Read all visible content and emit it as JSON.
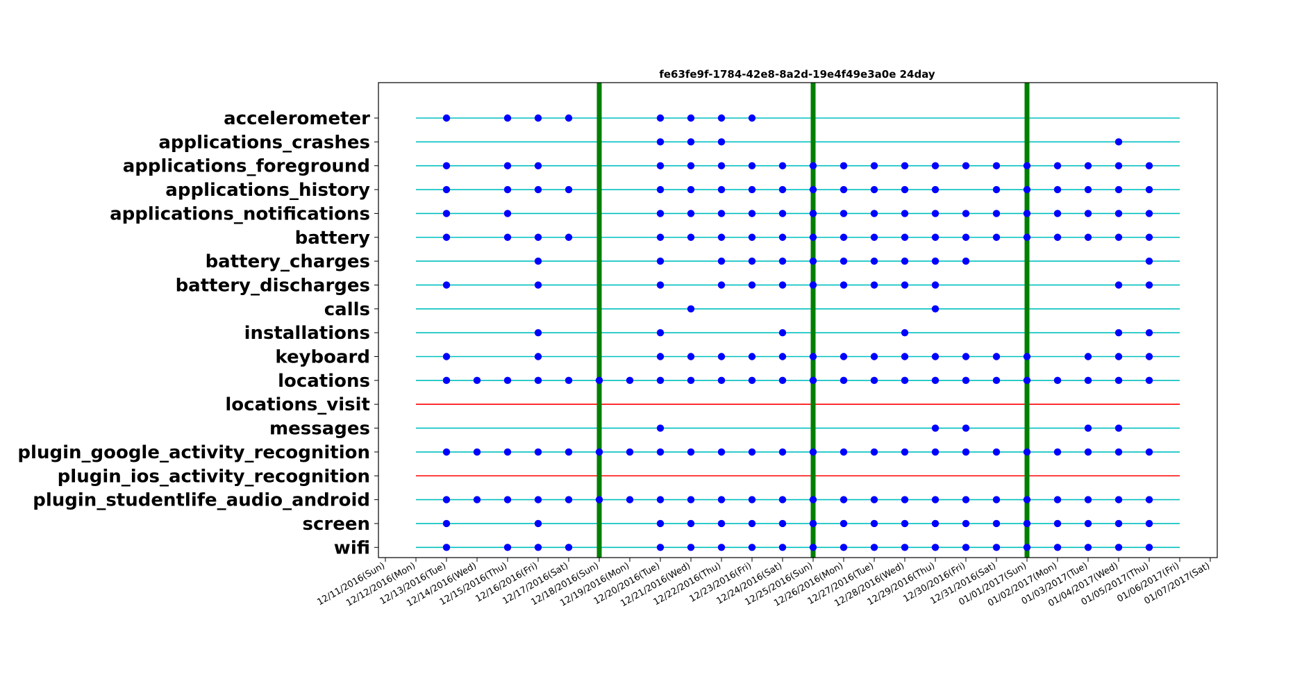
{
  "chart_data": {
    "type": "scatter",
    "title": "fe63fe9f-1784-42e8-8a2d-19e4f49e3a0e 24day",
    "xlabel": "",
    "ylabel": "",
    "x_tick_labels": [
      "12/11/2016(Sun)",
      "12/12/2016(Mon)",
      "12/13/2016(Tue)",
      "12/14/2016(Wed)",
      "12/15/2016(Thu)",
      "12/16/2016(Fri)",
      "12/17/2016(Sat)",
      "12/18/2016(Sun)",
      "12/19/2016(Mon)",
      "12/20/2016(Tue)",
      "12/21/2016(Wed)",
      "12/22/2016(Thu)",
      "12/23/2016(Fri)",
      "12/24/2016(Sat)",
      "12/25/2016(Sun)",
      "12/26/2016(Mon)",
      "12/27/2016(Tue)",
      "12/28/2016(Wed)",
      "12/29/2016(Thu)",
      "12/30/2016(Fri)",
      "12/31/2016(Sat)",
      "01/01/2017(Sun)",
      "01/02/2017(Mon)",
      "01/03/2017(Tue)",
      "01/04/2017(Wed)",
      "01/05/2017(Thu)",
      "01/06/2017(Fri)",
      "01/07/2017(Sat)"
    ],
    "line_range": [
      "12/12/2016(Mon)",
      "01/06/2017(Fri)"
    ],
    "week_markers": [
      "12/18/2016(Sun)",
      "12/25/2016(Sun)",
      "01/01/2017(Sun)"
    ],
    "colors": {
      "active_line": "#00bfbf",
      "empty_line": "#ff0000",
      "point": "#0000ff",
      "week_marker": "#008000"
    },
    "sensors": [
      {
        "name": "accelerometer",
        "has_data": true,
        "dates": [
          "12/13/2016(Tue)",
          "12/15/2016(Thu)",
          "12/16/2016(Fri)",
          "12/17/2016(Sat)",
          "12/20/2016(Tue)",
          "12/21/2016(Wed)",
          "12/22/2016(Thu)",
          "12/23/2016(Fri)"
        ]
      },
      {
        "name": "applications_crashes",
        "has_data": true,
        "dates": [
          "12/20/2016(Tue)",
          "12/21/2016(Wed)",
          "12/22/2016(Thu)",
          "01/04/2017(Wed)"
        ]
      },
      {
        "name": "applications_foreground",
        "has_data": true,
        "dates": [
          "12/13/2016(Tue)",
          "12/15/2016(Thu)",
          "12/16/2016(Fri)",
          "12/20/2016(Tue)",
          "12/21/2016(Wed)",
          "12/22/2016(Thu)",
          "12/23/2016(Fri)",
          "12/24/2016(Sat)",
          "12/25/2016(Sun)",
          "12/26/2016(Mon)",
          "12/27/2016(Tue)",
          "12/28/2016(Wed)",
          "12/29/2016(Thu)",
          "12/30/2016(Fri)",
          "12/31/2016(Sat)",
          "01/01/2017(Sun)",
          "01/02/2017(Mon)",
          "01/03/2017(Tue)",
          "01/04/2017(Wed)",
          "01/05/2017(Thu)"
        ]
      },
      {
        "name": "applications_history",
        "has_data": true,
        "dates": [
          "12/13/2016(Tue)",
          "12/15/2016(Thu)",
          "12/16/2016(Fri)",
          "12/17/2016(Sat)",
          "12/20/2016(Tue)",
          "12/21/2016(Wed)",
          "12/22/2016(Thu)",
          "12/23/2016(Fri)",
          "12/24/2016(Sat)",
          "12/25/2016(Sun)",
          "12/26/2016(Mon)",
          "12/27/2016(Tue)",
          "12/28/2016(Wed)",
          "12/29/2016(Thu)",
          "12/31/2016(Sat)",
          "01/01/2017(Sun)",
          "01/02/2017(Mon)",
          "01/03/2017(Tue)",
          "01/04/2017(Wed)",
          "01/05/2017(Thu)"
        ]
      },
      {
        "name": "applications_notifications",
        "has_data": true,
        "dates": [
          "12/13/2016(Tue)",
          "12/15/2016(Thu)",
          "12/20/2016(Tue)",
          "12/21/2016(Wed)",
          "12/22/2016(Thu)",
          "12/23/2016(Fri)",
          "12/24/2016(Sat)",
          "12/25/2016(Sun)",
          "12/26/2016(Mon)",
          "12/27/2016(Tue)",
          "12/28/2016(Wed)",
          "12/29/2016(Thu)",
          "12/30/2016(Fri)",
          "12/31/2016(Sat)",
          "01/01/2017(Sun)",
          "01/02/2017(Mon)",
          "01/03/2017(Tue)",
          "01/04/2017(Wed)",
          "01/05/2017(Thu)"
        ]
      },
      {
        "name": "battery",
        "has_data": true,
        "dates": [
          "12/13/2016(Tue)",
          "12/15/2016(Thu)",
          "12/16/2016(Fri)",
          "12/17/2016(Sat)",
          "12/20/2016(Tue)",
          "12/21/2016(Wed)",
          "12/22/2016(Thu)",
          "12/23/2016(Fri)",
          "12/24/2016(Sat)",
          "12/25/2016(Sun)",
          "12/26/2016(Mon)",
          "12/27/2016(Tue)",
          "12/28/2016(Wed)",
          "12/29/2016(Thu)",
          "12/30/2016(Fri)",
          "12/31/2016(Sat)",
          "01/01/2017(Sun)",
          "01/02/2017(Mon)",
          "01/03/2017(Tue)",
          "01/04/2017(Wed)",
          "01/05/2017(Thu)"
        ]
      },
      {
        "name": "battery_charges",
        "has_data": true,
        "dates": [
          "12/16/2016(Fri)",
          "12/20/2016(Tue)",
          "12/22/2016(Thu)",
          "12/23/2016(Fri)",
          "12/24/2016(Sat)",
          "12/25/2016(Sun)",
          "12/26/2016(Mon)",
          "12/27/2016(Tue)",
          "12/28/2016(Wed)",
          "12/29/2016(Thu)",
          "12/30/2016(Fri)",
          "01/05/2017(Thu)"
        ]
      },
      {
        "name": "battery_discharges",
        "has_data": true,
        "dates": [
          "12/13/2016(Tue)",
          "12/16/2016(Fri)",
          "12/20/2016(Tue)",
          "12/22/2016(Thu)",
          "12/23/2016(Fri)",
          "12/24/2016(Sat)",
          "12/25/2016(Sun)",
          "12/26/2016(Mon)",
          "12/27/2016(Tue)",
          "12/28/2016(Wed)",
          "12/29/2016(Thu)",
          "01/04/2017(Wed)",
          "01/05/2017(Thu)"
        ]
      },
      {
        "name": "calls",
        "has_data": true,
        "dates": [
          "12/21/2016(Wed)",
          "12/29/2016(Thu)"
        ]
      },
      {
        "name": "installations",
        "has_data": true,
        "dates": [
          "12/16/2016(Fri)",
          "12/20/2016(Tue)",
          "12/24/2016(Sat)",
          "12/28/2016(Wed)",
          "01/04/2017(Wed)",
          "01/05/2017(Thu)"
        ]
      },
      {
        "name": "keyboard",
        "has_data": true,
        "dates": [
          "12/13/2016(Tue)",
          "12/16/2016(Fri)",
          "12/20/2016(Tue)",
          "12/21/2016(Wed)",
          "12/22/2016(Thu)",
          "12/23/2016(Fri)",
          "12/24/2016(Sat)",
          "12/25/2016(Sun)",
          "12/26/2016(Mon)",
          "12/27/2016(Tue)",
          "12/28/2016(Wed)",
          "12/29/2016(Thu)",
          "12/30/2016(Fri)",
          "12/31/2016(Sat)",
          "01/01/2017(Sun)",
          "01/03/2017(Tue)",
          "01/04/2017(Wed)",
          "01/05/2017(Thu)"
        ]
      },
      {
        "name": "locations",
        "has_data": true,
        "dates": [
          "12/13/2016(Tue)",
          "12/14/2016(Wed)",
          "12/15/2016(Thu)",
          "12/16/2016(Fri)",
          "12/17/2016(Sat)",
          "12/18/2016(Sun)",
          "12/19/2016(Mon)",
          "12/20/2016(Tue)",
          "12/21/2016(Wed)",
          "12/22/2016(Thu)",
          "12/23/2016(Fri)",
          "12/24/2016(Sat)",
          "12/25/2016(Sun)",
          "12/26/2016(Mon)",
          "12/27/2016(Tue)",
          "12/28/2016(Wed)",
          "12/29/2016(Thu)",
          "12/30/2016(Fri)",
          "12/31/2016(Sat)",
          "01/01/2017(Sun)",
          "01/02/2017(Mon)",
          "01/03/2017(Tue)",
          "01/04/2017(Wed)",
          "01/05/2017(Thu)"
        ]
      },
      {
        "name": "locations_visit",
        "has_data": false,
        "dates": []
      },
      {
        "name": "messages",
        "has_data": true,
        "dates": [
          "12/20/2016(Tue)",
          "12/29/2016(Thu)",
          "12/30/2016(Fri)",
          "01/03/2017(Tue)",
          "01/04/2017(Wed)"
        ]
      },
      {
        "name": "plugin_google_activity_recognition",
        "has_data": true,
        "dates": [
          "12/13/2016(Tue)",
          "12/14/2016(Wed)",
          "12/15/2016(Thu)",
          "12/16/2016(Fri)",
          "12/17/2016(Sat)",
          "12/18/2016(Sun)",
          "12/19/2016(Mon)",
          "12/20/2016(Tue)",
          "12/21/2016(Wed)",
          "12/22/2016(Thu)",
          "12/23/2016(Fri)",
          "12/24/2016(Sat)",
          "12/25/2016(Sun)",
          "12/26/2016(Mon)",
          "12/27/2016(Tue)",
          "12/28/2016(Wed)",
          "12/29/2016(Thu)",
          "12/30/2016(Fri)",
          "12/31/2016(Sat)",
          "01/01/2017(Sun)",
          "01/02/2017(Mon)",
          "01/03/2017(Tue)",
          "01/04/2017(Wed)",
          "01/05/2017(Thu)"
        ]
      },
      {
        "name": "plugin_ios_activity_recognition",
        "has_data": false,
        "dates": []
      },
      {
        "name": "plugin_studentlife_audio_android",
        "has_data": true,
        "dates": [
          "12/13/2016(Tue)",
          "12/14/2016(Wed)",
          "12/15/2016(Thu)",
          "12/16/2016(Fri)",
          "12/17/2016(Sat)",
          "12/18/2016(Sun)",
          "12/19/2016(Mon)",
          "12/20/2016(Tue)",
          "12/21/2016(Wed)",
          "12/22/2016(Thu)",
          "12/23/2016(Fri)",
          "12/24/2016(Sat)",
          "12/25/2016(Sun)",
          "12/26/2016(Mon)",
          "12/27/2016(Tue)",
          "12/28/2016(Wed)",
          "12/29/2016(Thu)",
          "12/30/2016(Fri)",
          "12/31/2016(Sat)",
          "01/01/2017(Sun)",
          "01/02/2017(Mon)",
          "01/03/2017(Tue)",
          "01/04/2017(Wed)",
          "01/05/2017(Thu)"
        ]
      },
      {
        "name": "screen",
        "has_data": true,
        "dates": [
          "12/13/2016(Tue)",
          "12/16/2016(Fri)",
          "12/20/2016(Tue)",
          "12/21/2016(Wed)",
          "12/22/2016(Thu)",
          "12/23/2016(Fri)",
          "12/24/2016(Sat)",
          "12/25/2016(Sun)",
          "12/26/2016(Mon)",
          "12/27/2016(Tue)",
          "12/28/2016(Wed)",
          "12/29/2016(Thu)",
          "12/30/2016(Fri)",
          "12/31/2016(Sat)",
          "01/01/2017(Sun)",
          "01/02/2017(Mon)",
          "01/03/2017(Tue)",
          "01/04/2017(Wed)",
          "01/05/2017(Thu)"
        ]
      },
      {
        "name": "wifi",
        "has_data": true,
        "dates": [
          "12/13/2016(Tue)",
          "12/15/2016(Thu)",
          "12/16/2016(Fri)",
          "12/17/2016(Sat)",
          "12/20/2016(Tue)",
          "12/21/2016(Wed)",
          "12/22/2016(Thu)",
          "12/23/2016(Fri)",
          "12/24/2016(Sat)",
          "12/25/2016(Sun)",
          "12/26/2016(Mon)",
          "12/27/2016(Tue)",
          "12/28/2016(Wed)",
          "12/29/2016(Thu)",
          "12/30/2016(Fri)",
          "12/31/2016(Sat)",
          "01/01/2017(Sun)",
          "01/02/2017(Mon)",
          "01/03/2017(Tue)",
          "01/04/2017(Wed)",
          "01/05/2017(Thu)"
        ]
      }
    ]
  }
}
